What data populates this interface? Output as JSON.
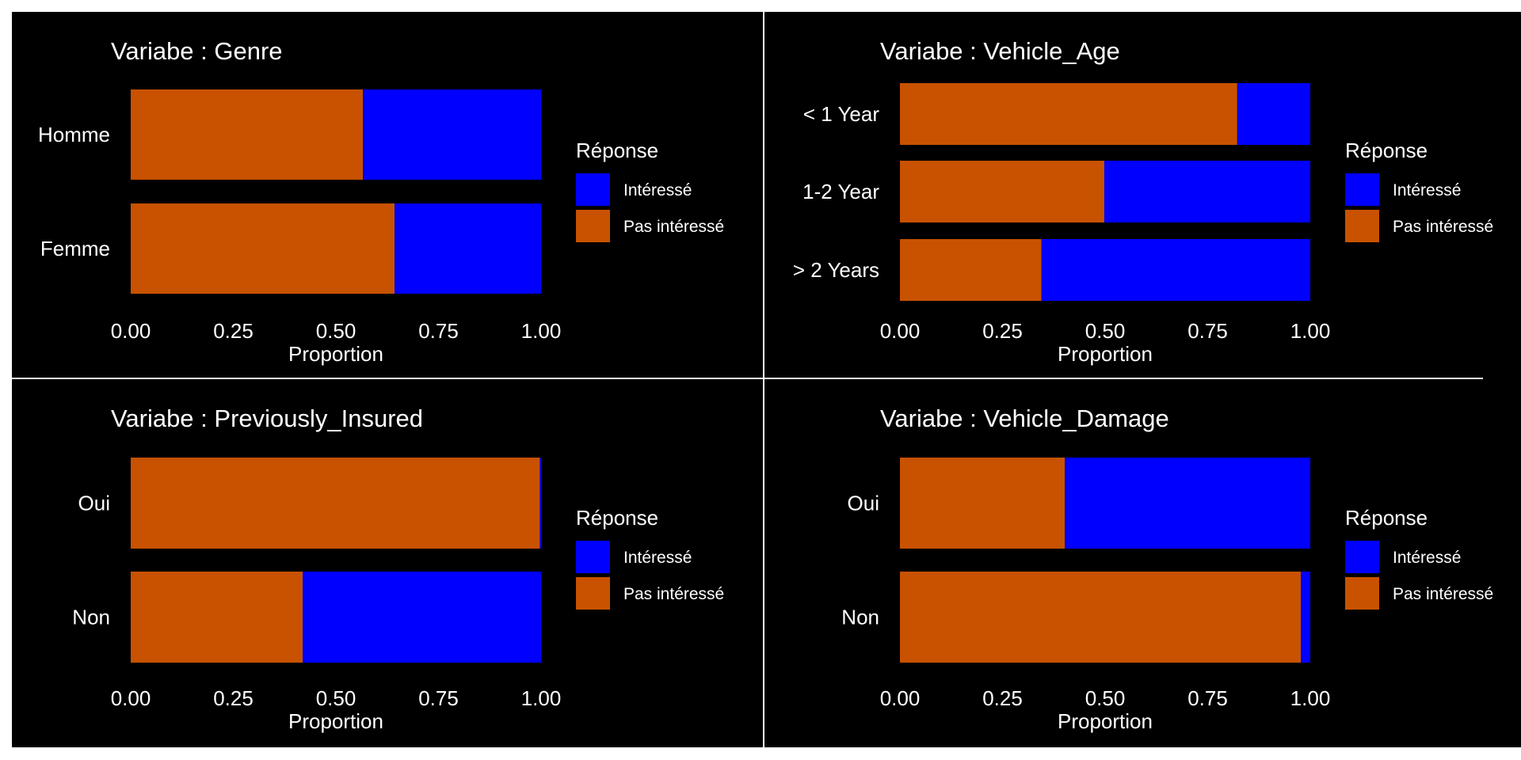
{
  "colors": {
    "interesse": "#0000ff",
    "pas_interesse": "#c85200",
    "background": "#000000",
    "text": "#ffffff"
  },
  "chart_data": [
    {
      "type": "bar",
      "orientation": "horizontal",
      "stacked": "proportion",
      "title": "Variabe : Genre",
      "xlabel": "Proportion",
      "xlim": [
        0,
        1
      ],
      "xticks": [
        "0.00",
        "0.25",
        "0.50",
        "0.75",
        "1.00"
      ],
      "categories": [
        "Homme",
        "Femme"
      ],
      "series": [
        {
          "name": "Pas intéressé",
          "values": [
            0.566,
            0.643
          ]
        },
        {
          "name": "Intéressé",
          "values": [
            0.434,
            0.357
          ]
        }
      ],
      "legend": {
        "title": "Réponse",
        "entries": [
          "Intéressé",
          "Pas intéressé"
        ],
        "position": "right"
      }
    },
    {
      "type": "bar",
      "orientation": "horizontal",
      "stacked": "proportion",
      "title": "Variabe : Vehicle_Age",
      "xlabel": "Proportion",
      "xlim": [
        0,
        1
      ],
      "xticks": [
        "0.00",
        "0.25",
        "0.50",
        "0.75",
        "1.00"
      ],
      "categories": [
        "< 1 Year",
        "1-2 Year",
        "> 2 Years"
      ],
      "series": [
        {
          "name": "Pas intéressé",
          "values": [
            0.822,
            0.498,
            0.345
          ]
        },
        {
          "name": "Intéressé",
          "values": [
            0.178,
            0.502,
            0.655
          ]
        }
      ],
      "legend": {
        "title": "Réponse",
        "entries": [
          "Intéressé",
          "Pas intéressé"
        ],
        "position": "right"
      }
    },
    {
      "type": "bar",
      "orientation": "horizontal",
      "stacked": "proportion",
      "title": "Variabe : Previously_Insured",
      "xlabel": "Proportion",
      "xlim": [
        0,
        1
      ],
      "xticks": [
        "0.00",
        "0.25",
        "0.50",
        "0.75",
        "1.00"
      ],
      "categories": [
        "Oui",
        "Non"
      ],
      "series": [
        {
          "name": "Pas intéressé",
          "values": [
            0.997,
            0.419
          ]
        },
        {
          "name": "Intéressé",
          "values": [
            0.003,
            0.581
          ]
        }
      ],
      "legend": {
        "title": "Réponse",
        "entries": [
          "Intéressé",
          "Pas intéressé"
        ],
        "position": "right"
      }
    },
    {
      "type": "bar",
      "orientation": "horizontal",
      "stacked": "proportion",
      "title": "Variabe : Vehicle_Damage",
      "xlabel": "Proportion",
      "xlim": [
        0,
        1
      ],
      "xticks": [
        "0.00",
        "0.25",
        "0.50",
        "0.75",
        "1.00"
      ],
      "categories": [
        "Oui",
        "Non"
      ],
      "series": [
        {
          "name": "Pas intéressé",
          "values": [
            0.402,
            0.977
          ]
        },
        {
          "name": "Intéressé",
          "values": [
            0.598,
            0.023
          ]
        }
      ],
      "legend": {
        "title": "Réponse",
        "entries": [
          "Intéressé",
          "Pas intéressé"
        ],
        "position": "right"
      }
    }
  ]
}
